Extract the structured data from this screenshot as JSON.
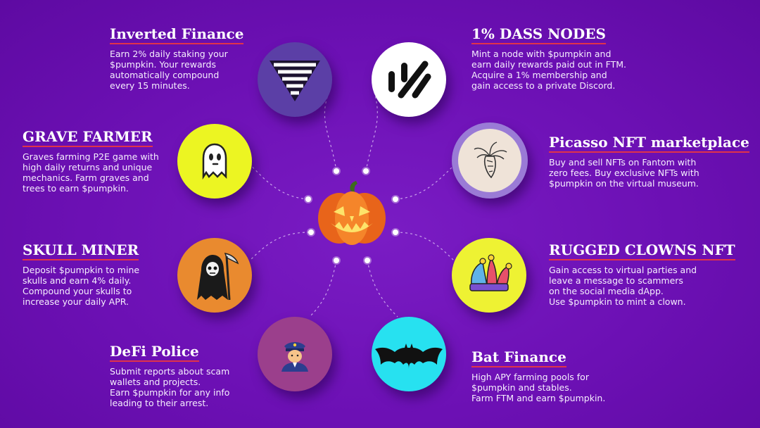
{
  "items": [
    {
      "key": "inverted-finance",
      "title": "Inverted Finance",
      "description": "Earn 2% daily staking your\n$pumpkin. Your rewards\nautomatically compound\nevery 15 minutes.",
      "icon": "inverted-pyramid-icon",
      "color": "#5b3fa6"
    },
    {
      "key": "dass-nodes",
      "title": "1% DASS NODES",
      "description": "Mint a node with $pumpkin and\nearn daily rewards paid out in FTM.\nAcquire a 1% membership and\ngain access to a private Discord.",
      "icon": "one-percent-logo-icon",
      "color": "#ffffff"
    },
    {
      "key": "grave-farmer",
      "title": "GRAVE FARMER",
      "description": "Graves farming P2E game with\nhigh daily returns and unique\nmechanics. Farm graves and\ntrees to earn $pumpkin.",
      "icon": "ghost-icon",
      "color": "#ecf522"
    },
    {
      "key": "picasso",
      "title": "Picasso NFT marketplace",
      "description": "Buy and sell NFTs on Fantom with\nzero fees. Buy exclusive NFTs with\n$pumpkin on the virtual museum.",
      "icon": "carrot-sketch-icon",
      "color": "#9a7bd6"
    },
    {
      "key": "skull-miner",
      "title": "SKULL MINER",
      "description": "Deposit $pumpkin to mine\nskulls and earn 4% daily.\nCompound your skulls to\nincrease your daily APR.",
      "icon": "grim-reaper-icon",
      "color": "#e98a2f"
    },
    {
      "key": "rugged-clowns",
      "title": "RUGGED CLOWNS NFT",
      "description": "Gain access to virtual parties and\nleave a message to scammers\non the social media dApp.\nUse $pumpkin to mint a clown.",
      "icon": "jester-hat-icon",
      "color": "#eef233"
    },
    {
      "key": "defi-police",
      "title": "DeFi Police",
      "description": "Submit reports about scam\nwallets and projects.\nEarn $pumpkin for any info\nleading to their arrest.",
      "icon": "police-officer-icon",
      "color": "#9b3f8c"
    },
    {
      "key": "bat-finance",
      "title": "Bat Finance",
      "description": "High APY farming pools for\n$pumpkin and stables.\nFarm FTM and earn $pumpkin.",
      "icon": "bat-icon",
      "color": "#27e1f0"
    }
  ],
  "center": {
    "icon": "jack-o-lantern-icon",
    "color": "#f2741d"
  },
  "accent": "#e0334a"
}
